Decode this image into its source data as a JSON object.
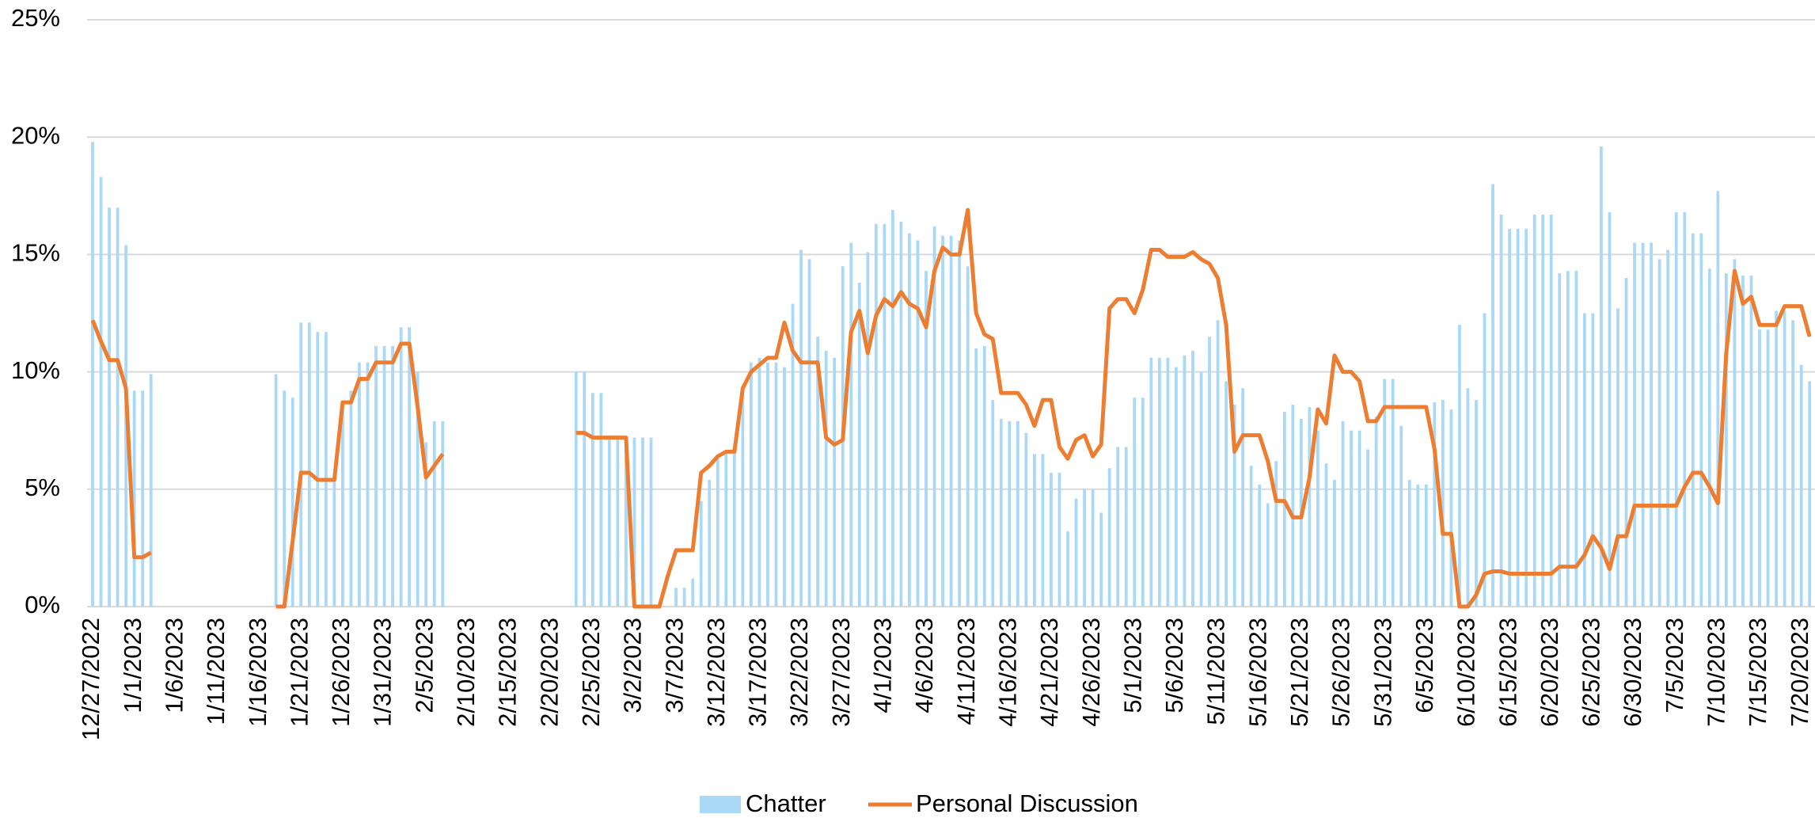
{
  "chart_data": {
    "type": "bar-line",
    "categories": [
      "12/27/2022",
      null,
      null,
      null,
      null,
      "1/1/2023",
      null,
      null,
      null,
      null,
      "1/6/2023",
      null,
      null,
      null,
      null,
      "1/11/2023",
      null,
      null,
      null,
      null,
      "1/16/2023",
      null,
      null,
      null,
      null,
      "1/21/2023",
      null,
      null,
      null,
      null,
      "1/26/2023",
      null,
      null,
      null,
      null,
      "1/31/2023",
      null,
      null,
      null,
      null,
      "2/5/2023",
      null,
      null,
      null,
      null,
      "2/10/2023",
      null,
      null,
      null,
      null,
      "2/15/2023",
      null,
      null,
      null,
      null,
      "2/20/2023",
      null,
      null,
      null,
      null,
      "2/25/2023",
      null,
      null,
      null,
      null,
      "3/2/2023",
      null,
      null,
      null,
      null,
      "3/7/2023",
      null,
      null,
      null,
      null,
      "3/12/2023",
      null,
      null,
      null,
      null,
      "3/17/2023",
      null,
      null,
      null,
      null,
      "3/22/2023",
      null,
      null,
      null,
      null,
      "3/27/2023",
      null,
      null,
      null,
      null,
      "4/1/2023",
      null,
      null,
      null,
      null,
      "4/6/2023",
      null,
      null,
      null,
      null,
      "4/11/2023",
      null,
      null,
      null,
      null,
      "4/16/2023",
      null,
      null,
      null,
      null,
      "4/21/2023",
      null,
      null,
      null,
      null,
      "4/26/2023",
      null,
      null,
      null,
      null,
      "5/1/2023",
      null,
      null,
      null,
      null,
      "5/6/2023",
      null,
      null,
      null,
      null,
      "5/11/2023",
      null,
      null,
      null,
      null,
      "5/16/2023",
      null,
      null,
      null,
      null,
      "5/21/2023",
      null,
      null,
      null,
      null,
      "5/26/2023",
      null,
      null,
      null,
      null,
      "5/31/2023",
      null,
      null,
      null,
      null,
      "6/5/2023",
      null,
      null,
      null,
      null,
      "6/10/2023",
      null,
      null,
      null,
      null,
      "6/15/2023",
      null,
      null,
      null,
      null,
      "6/20/2023",
      null,
      null,
      null,
      null,
      "6/25/2023",
      null,
      null,
      null,
      null,
      "6/30/2023",
      null,
      null,
      null,
      null,
      "7/5/2023",
      null,
      null,
      null,
      null,
      "7/10/2023",
      null,
      null,
      null,
      null,
      "7/15/2023",
      null,
      null,
      null,
      null,
      "7/20/2023",
      null
    ],
    "series": [
      {
        "name": "Chatter",
        "type": "bar",
        "color": "#a9d9f6",
        "values": [
          19.8,
          18.3,
          17,
          17,
          15.4,
          9.2,
          9.2,
          9.9,
          null,
          null,
          null,
          null,
          null,
          null,
          null,
          null,
          null,
          null,
          null,
          null,
          null,
          null,
          9.9,
          9.2,
          8.9,
          12.1,
          12.1,
          11.7,
          11.7,
          5.4,
          8.7,
          9.2,
          10.4,
          10.4,
          11.1,
          11.1,
          11.1,
          11.9,
          11.9,
          10,
          7,
          7.9,
          7.9,
          null,
          null,
          null,
          null,
          null,
          null,
          null,
          null,
          null,
          null,
          null,
          null,
          null,
          null,
          null,
          10,
          10,
          9.1,
          9.1,
          7.2,
          7.2,
          7.2,
          7.2,
          7.2,
          7.2,
          null,
          null,
          0.8,
          0.8,
          1.2,
          4.5,
          5.4,
          6.3,
          6.6,
          6.6,
          9.3,
          10.4,
          10.6,
          10.4,
          10.4,
          10.2,
          12.9,
          15.2,
          14.8,
          11.5,
          10.9,
          10.6,
          14.5,
          15.5,
          13.8,
          15.1,
          16.3,
          16.3,
          16.9,
          16.4,
          15.9,
          15.6,
          14.3,
          16.2,
          15.8,
          15.8,
          15.6,
          14.5,
          11,
          11.1,
          8.8,
          8,
          7.9,
          7.9,
          7.4,
          6.5,
          6.5,
          5.7,
          5.7,
          3.2,
          4.6,
          5,
          5,
          4,
          5.9,
          6.8,
          6.8,
          8.9,
          8.9,
          10.6,
          10.6,
          10.6,
          10.2,
          10.7,
          10.9,
          10,
          11.5,
          12.2,
          9.6,
          8.6,
          9.3,
          6,
          5.2,
          4.4,
          6.2,
          8.3,
          8.6,
          8,
          8.5,
          7.5,
          6.1,
          5.4,
          7.9,
          7.5,
          7.5,
          6.7,
          8.1,
          9.7,
          9.7,
          7.7,
          5.4,
          5.2,
          5.2,
          8.7,
          8.8,
          8.4,
          12,
          9.3,
          8.8,
          12.5,
          18,
          16.7,
          16.1,
          16.1,
          16.1,
          16.7,
          16.7,
          16.7,
          14.2,
          14.3,
          14.3,
          12.5,
          12.5,
          19.6,
          16.8,
          12.7,
          14,
          15.5,
          15.5,
          15.5,
          14.8,
          15.2,
          16.8,
          16.8,
          15.9,
          15.9,
          14.4,
          17.7,
          14.2,
          14.8,
          14.1,
          14.1,
          11.8,
          11.8,
          12.6,
          12.6,
          12.2,
          10.3,
          9.6
        ]
      },
      {
        "name": "Personal Discussion",
        "type": "line",
        "color": "#ed7d31",
        "values": [
          12.2,
          11.3,
          10.5,
          10.5,
          9.3,
          2.1,
          2.1,
          2.3,
          null,
          null,
          null,
          null,
          null,
          null,
          null,
          null,
          null,
          null,
          null,
          null,
          null,
          null,
          0,
          0,
          2.8,
          5.7,
          5.7,
          5.4,
          5.4,
          5.4,
          8.7,
          8.7,
          9.7,
          9.7,
          10.4,
          10.4,
          10.4,
          11.2,
          11.2,
          8.5,
          5.5,
          6,
          6.5,
          null,
          null,
          null,
          null,
          null,
          null,
          null,
          null,
          null,
          null,
          null,
          null,
          null,
          null,
          null,
          7.4,
          7.4,
          7.2,
          7.2,
          7.2,
          7.2,
          7.2,
          0,
          0,
          0,
          0,
          1.3,
          2.4,
          2.4,
          2.4,
          5.7,
          6,
          6.4,
          6.6,
          6.6,
          9.3,
          10,
          10.3,
          10.6,
          10.6,
          12.1,
          10.9,
          10.4,
          10.4,
          10.4,
          7.2,
          6.9,
          7.1,
          11.7,
          12.6,
          10.8,
          12.4,
          13.1,
          12.8,
          13.4,
          12.9,
          12.7,
          11.9,
          14.3,
          15.3,
          15,
          15,
          16.9,
          12.5,
          11.6,
          11.4,
          9.1,
          9.1,
          9.1,
          8.6,
          7.7,
          8.8,
          8.8,
          6.8,
          6.3,
          7.1,
          7.3,
          6.4,
          6.9,
          12.7,
          13.1,
          13.1,
          12.5,
          13.5,
          15.2,
          15.2,
          14.9,
          14.9,
          14.9,
          15.1,
          14.8,
          14.6,
          14,
          12,
          6.6,
          7.3,
          7.3,
          7.3,
          6.2,
          4.5,
          4.5,
          3.8,
          3.8,
          5.5,
          8.4,
          7.8,
          10.7,
          10,
          10,
          9.6,
          7.9,
          7.9,
          8.5,
          8.5,
          8.5,
          8.5,
          8.5,
          8.5,
          6.7,
          3.1,
          3.1,
          0,
          0,
          0.5,
          1.4,
          1.5,
          1.5,
          1.4,
          1.4,
          1.4,
          1.4,
          1.4,
          1.4,
          1.7,
          1.7,
          1.7,
          2.2,
          3,
          2.5,
          1.6,
          3,
          3,
          4.3,
          4.3,
          4.3,
          4.3,
          4.3,
          4.3,
          5.1,
          5.7,
          5.7,
          5.1,
          4.4,
          10.8,
          14.3,
          12.9,
          13.2,
          12,
          12,
          12,
          12.8,
          12.8,
          12.8,
          11.5
        ]
      }
    ],
    "ylim": [
      0,
      25
    ],
    "yticks": [
      {
        "value": 0,
        "label": "0%"
      },
      {
        "value": 5,
        "label": "5%"
      },
      {
        "value": 10,
        "label": "10%"
      },
      {
        "value": 15,
        "label": "15%"
      },
      {
        "value": 20,
        "label": "20%"
      },
      {
        "value": 25,
        "label": "25%"
      }
    ],
    "grid": true,
    "legend": "bottom"
  }
}
